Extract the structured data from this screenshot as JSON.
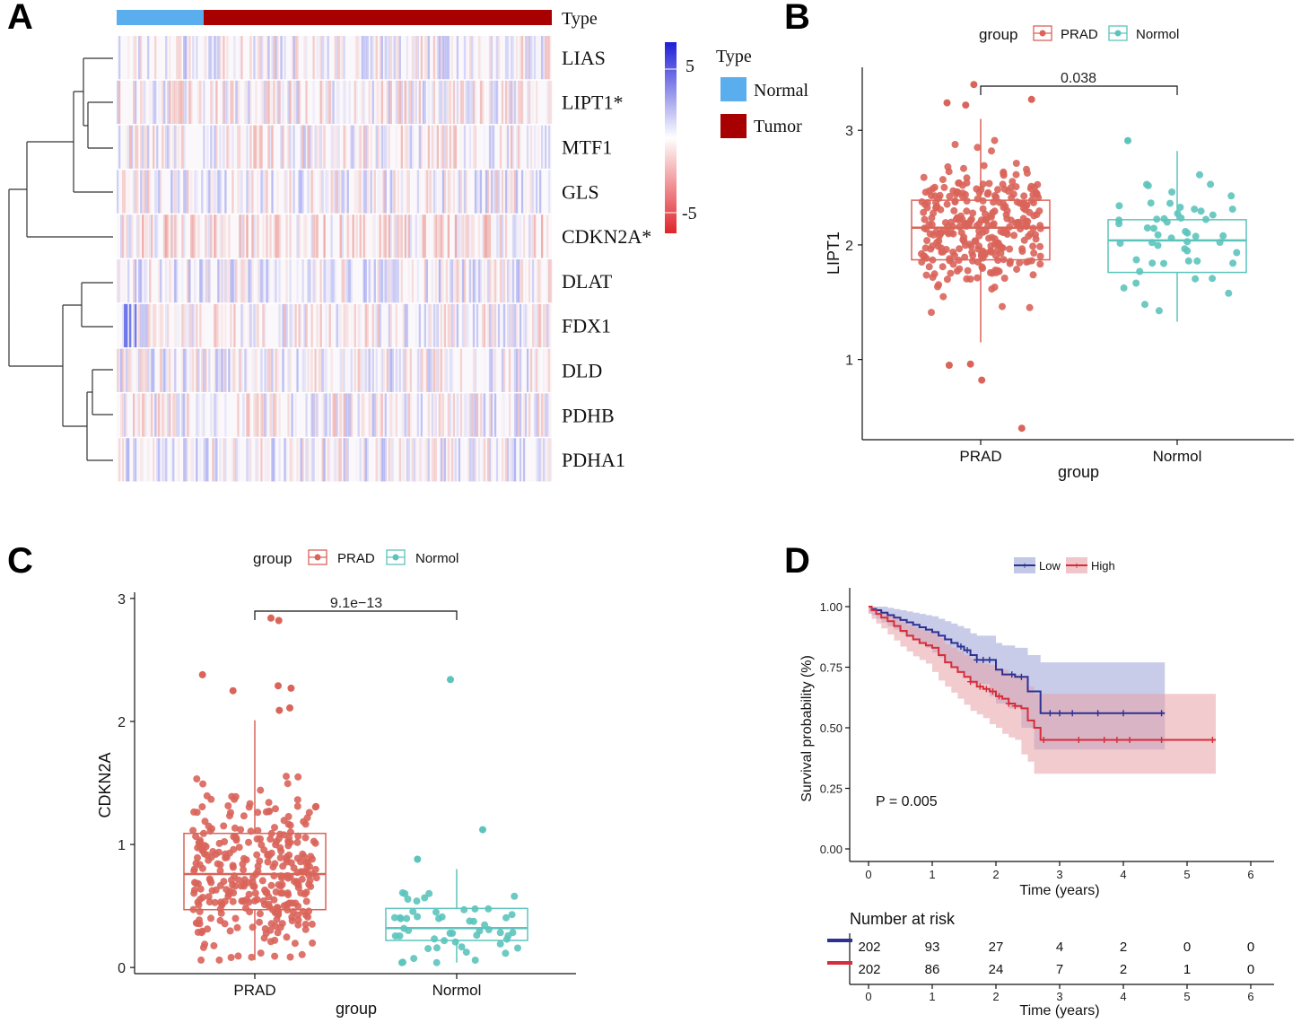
{
  "panels": {
    "a": "A",
    "b": "B",
    "c": "C",
    "d": "D"
  },
  "heatmap": {
    "annotation_label": "Type",
    "genes": [
      "LIAS",
      "LIPT1*",
      "MTF1",
      "GLS",
      "CDKN2A*",
      "DLAT",
      "FDX1",
      "DLD",
      "PDHB",
      "PDHA1"
    ],
    "colorbar": {
      "max_label": "5",
      "min_label": "-5",
      "high_color": "#1f1fd6",
      "mid_color": "#ffffff",
      "low_color": "#e0252b"
    },
    "legend": {
      "title": "Type",
      "items": [
        {
          "label": "Normal",
          "color": "#5aaeee"
        },
        {
          "label": "Tumor",
          "color": "#a80000"
        }
      ]
    },
    "normal_fraction": 0.2
  },
  "chart_data": [
    {
      "id": "B",
      "type": "boxplot",
      "legend_title": "group",
      "groups": [
        {
          "name": "PRAD",
          "color": "#d9645a",
          "n": 300,
          "q1": 1.87,
          "median": 2.15,
          "q3": 2.39,
          "whisker_low": 1.15,
          "whisker_high": 3.1,
          "outliers": [
            0.82,
            0.95,
            0.96,
            0.4,
            3.4,
            3.27,
            3.24,
            3.22
          ]
        },
        {
          "name": "Normol",
          "color": "#5cc4bd",
          "n": 52,
          "q1": 1.76,
          "median": 2.04,
          "q3": 2.22,
          "whisker_low": 1.33,
          "whisker_high": 2.82,
          "outliers": [
            2.91
          ]
        }
      ],
      "ylabel": "LIPT1",
      "xlabel": "group",
      "yticks": [
        1,
        2,
        3
      ],
      "ylim": [
        0.3,
        3.55
      ],
      "pvalue": "0.038"
    },
    {
      "id": "C",
      "type": "boxplot",
      "legend_title": "group",
      "groups": [
        {
          "name": "PRAD",
          "color": "#d9645a",
          "n": 330,
          "q1": 0.47,
          "median": 0.76,
          "q3": 1.09,
          "whisker_low": 0.06,
          "whisker_high": 2.01,
          "outliers": [
            2.82,
            2.84,
            2.38,
            2.29,
            2.27,
            2.25,
            2.11,
            2.09
          ]
        },
        {
          "name": "Normol",
          "color": "#5cc4bd",
          "n": 52,
          "q1": 0.22,
          "median": 0.32,
          "q3": 0.48,
          "whisker_low": 0.04,
          "whisker_high": 0.8,
          "outliers": [
            2.34,
            1.12,
            0.88
          ]
        }
      ],
      "ylabel": "CDKN2A",
      "xlabel": "group",
      "yticks": [
        0,
        1,
        2,
        3
      ],
      "ylim": [
        -0.05,
        3.05
      ],
      "pvalue": "9.1e−13"
    },
    {
      "id": "D",
      "type": "line",
      "title": "",
      "xlabel": "Time (years)",
      "ylabel": "Survival probability (%)",
      "xlim": [
        0,
        6
      ],
      "ylim": [
        0,
        1
      ],
      "xticks": [
        0,
        1,
        2,
        3,
        4,
        5,
        6
      ],
      "yticks": [
        "0.00",
        "0.25",
        "0.50",
        "0.75",
        "1.00"
      ],
      "pvalue_text": "P = 0.005",
      "series": [
        {
          "name": "Low",
          "color": "#2e3192",
          "band_color": "#9aa3d6",
          "times": [
            0,
            0.05,
            0.12,
            0.2,
            0.3,
            0.4,
            0.5,
            0.6,
            0.7,
            0.8,
            0.9,
            1.0,
            1.1,
            1.2,
            1.3,
            1.4,
            1.5,
            1.6,
            1.7,
            1.8,
            1.9,
            2.0,
            2.1,
            2.2,
            2.3,
            2.4,
            2.5,
            2.6,
            2.7,
            3.0,
            3.5,
            4.0,
            4.65
          ],
          "surv": [
            1,
            0.99,
            0.985,
            0.975,
            0.965,
            0.955,
            0.945,
            0.935,
            0.925,
            0.915,
            0.905,
            0.895,
            0.88,
            0.865,
            0.85,
            0.835,
            0.82,
            0.8,
            0.78,
            0.78,
            0.78,
            0.74,
            0.72,
            0.72,
            0.71,
            0.71,
            0.65,
            0.65,
            0.56,
            0.56,
            0.56,
            0.56,
            0.56
          ],
          "lower": [
            1,
            0.975,
            0.965,
            0.95,
            0.935,
            0.92,
            0.905,
            0.89,
            0.875,
            0.86,
            0.845,
            0.83,
            0.81,
            0.79,
            0.77,
            0.75,
            0.73,
            0.71,
            0.68,
            0.68,
            0.68,
            0.63,
            0.6,
            0.6,
            0.58,
            0.58,
            0.5,
            0.5,
            0.41,
            0.41,
            0.41,
            0.41,
            0.41
          ],
          "upper": [
            1,
            1,
            1,
            1,
            0.995,
            0.99,
            0.985,
            0.98,
            0.975,
            0.97,
            0.965,
            0.96,
            0.95,
            0.94,
            0.93,
            0.92,
            0.91,
            0.89,
            0.88,
            0.88,
            0.88,
            0.85,
            0.84,
            0.84,
            0.83,
            0.83,
            0.8,
            0.8,
            0.77,
            0.77,
            0.77,
            0.77,
            0.77
          ],
          "censor_times": [
            1.45,
            1.55,
            1.7,
            1.8,
            1.9,
            2.25,
            2.4,
            2.85,
            3.0,
            3.2,
            3.6,
            4.0,
            4.6
          ]
        },
        {
          "name": "High",
          "color": "#d62d3a",
          "band_color": "#e8a0a6",
          "times": [
            0,
            0.05,
            0.12,
            0.2,
            0.3,
            0.4,
            0.5,
            0.6,
            0.7,
            0.8,
            0.9,
            1.0,
            1.1,
            1.2,
            1.3,
            1.4,
            1.5,
            1.6,
            1.7,
            1.8,
            1.9,
            2.0,
            2.1,
            2.2,
            2.3,
            2.4,
            2.5,
            2.6,
            2.7,
            3.0,
            3.5,
            4.0,
            4.65,
            5.45
          ],
          "surv": [
            1,
            0.985,
            0.97,
            0.955,
            0.94,
            0.92,
            0.9,
            0.88,
            0.865,
            0.85,
            0.84,
            0.83,
            0.8,
            0.77,
            0.75,
            0.73,
            0.71,
            0.69,
            0.67,
            0.66,
            0.65,
            0.63,
            0.62,
            0.6,
            0.59,
            0.58,
            0.53,
            0.5,
            0.45,
            0.45,
            0.45,
            0.45,
            0.45,
            0.45
          ],
          "lower": [
            1,
            0.97,
            0.95,
            0.93,
            0.91,
            0.885,
            0.86,
            0.835,
            0.815,
            0.795,
            0.78,
            0.765,
            0.73,
            0.695,
            0.67,
            0.645,
            0.62,
            0.595,
            0.57,
            0.555,
            0.54,
            0.515,
            0.5,
            0.475,
            0.46,
            0.45,
            0.39,
            0.36,
            0.31,
            0.31,
            0.31,
            0.31,
            0.31,
            0.31
          ],
          "upper": [
            1,
            1,
            0.99,
            0.98,
            0.97,
            0.955,
            0.94,
            0.925,
            0.915,
            0.905,
            0.9,
            0.895,
            0.87,
            0.845,
            0.83,
            0.815,
            0.8,
            0.785,
            0.77,
            0.765,
            0.76,
            0.745,
            0.74,
            0.725,
            0.72,
            0.71,
            0.67,
            0.64,
            0.64,
            0.64,
            0.64,
            0.64,
            0.64,
            0.64
          ],
          "censor_times": [
            1.6,
            1.75,
            1.85,
            1.95,
            2.05,
            2.2,
            2.3,
            2.75,
            3.3,
            3.7,
            3.9,
            4.1,
            4.6,
            5.4
          ]
        }
      ],
      "risk_table": {
        "title": "Number at risk",
        "rows": [
          {
            "name": "Low",
            "color": "#2e3192",
            "values": [
              "202",
              "93",
              "27",
              "4",
              "2",
              "0",
              "0"
            ]
          },
          {
            "name": "High",
            "color": "#d62d3a",
            "values": [
              "202",
              "86",
              "24",
              "7",
              "2",
              "1",
              "0"
            ]
          }
        ],
        "xlabel": "Time (years)"
      }
    }
  ]
}
